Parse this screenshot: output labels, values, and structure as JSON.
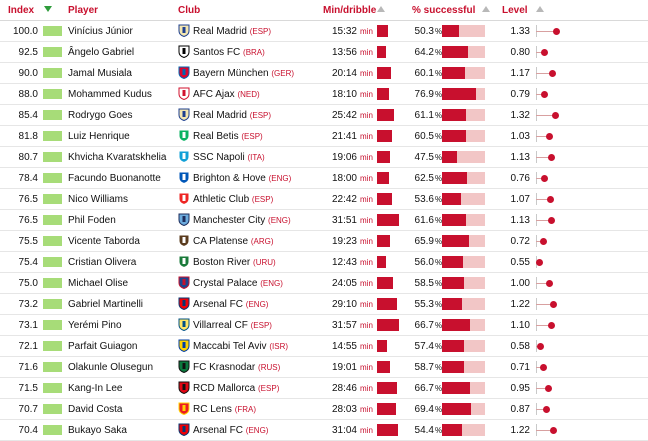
{
  "header": {
    "index": "Index",
    "player": "Player",
    "club": "Club",
    "min_dribble": "Min/dribble",
    "pct_successful": "% successful",
    "level": "Level"
  },
  "units": {
    "min": "min",
    "pct": "%"
  },
  "colors": {
    "accent": "#c8102e",
    "index_bar": "#a7dc78",
    "pct_track": "#f2c6c6"
  },
  "rows": [
    {
      "index": "100.0",
      "player": "Vinícius Júnior",
      "club": "Real Madrid",
      "country": "(ESP)",
      "crest": "real-madrid-crest-icon",
      "min": "15:32",
      "pct": "50.3",
      "level": "1.33"
    },
    {
      "index": "92.5",
      "player": "Ângelo Gabriel",
      "club": "Santos FC",
      "country": "(BRA)",
      "crest": "santos-crest-icon",
      "min": "13:56",
      "pct": "64.2",
      "level": "0.80"
    },
    {
      "index": "90.0",
      "player": "Jamal Musiala",
      "club": "Bayern München",
      "country": "(GER)",
      "crest": "bayern-crest-icon",
      "min": "20:14",
      "pct": "60.1",
      "level": "1.17"
    },
    {
      "index": "88.0",
      "player": "Mohammed Kudus",
      "club": "AFC Ajax",
      "country": "(NED)",
      "crest": "ajax-crest-icon",
      "min": "18:10",
      "pct": "76.9",
      "level": "0.79"
    },
    {
      "index": "85.4",
      "player": "Rodrygo Goes",
      "club": "Real Madrid",
      "country": "(ESP)",
      "crest": "real-madrid-crest-icon",
      "min": "25:42",
      "pct": "61.1",
      "level": "1.32"
    },
    {
      "index": "81.8",
      "player": "Luiz Henrique",
      "club": "Real Betis",
      "country": "(ESP)",
      "crest": "real-betis-crest-icon",
      "min": "21:41",
      "pct": "60.5",
      "level": "1.03"
    },
    {
      "index": "80.7",
      "player": "Khvicha Kvaratskhelia",
      "club": "SSC Napoli",
      "country": "(ITA)",
      "crest": "napoli-crest-icon",
      "min": "19:06",
      "pct": "47.5",
      "level": "1.13"
    },
    {
      "index": "78.4",
      "player": "Facundo Buonanotte",
      "club": "Brighton & Hove",
      "country": "(ENG)",
      "crest": "brighton-crest-icon",
      "min": "18:00",
      "pct": "62.5",
      "level": "0.76"
    },
    {
      "index": "76.5",
      "player": "Nico Williams",
      "club": "Athletic Club",
      "country": "(ESP)",
      "crest": "athletic-club-crest-icon",
      "min": "22:42",
      "pct": "53.6",
      "level": "1.07"
    },
    {
      "index": "76.5",
      "player": "Phil Foden",
      "club": "Manchester City",
      "country": "(ENG)",
      "crest": "man-city-crest-icon",
      "min": "31:51",
      "pct": "61.6",
      "level": "1.13"
    },
    {
      "index": "75.5",
      "player": "Vicente Taborda",
      "club": "CA Platense",
      "country": "(ARG)",
      "crest": "platense-crest-icon",
      "min": "19:23",
      "pct": "65.9",
      "level": "0.72"
    },
    {
      "index": "75.4",
      "player": "Cristian Olivera",
      "club": "Boston River",
      "country": "(URU)",
      "crest": "boston-river-crest-icon",
      "min": "12:43",
      "pct": "56.0",
      "level": "0.55"
    },
    {
      "index": "75.0",
      "player": "Michael Olise",
      "club": "Crystal Palace",
      "country": "(ENG)",
      "crest": "crystal-palace-crest-icon",
      "min": "24:05",
      "pct": "58.5",
      "level": "1.00"
    },
    {
      "index": "73.2",
      "player": "Gabriel Martinelli",
      "club": "Arsenal FC",
      "country": "(ENG)",
      "crest": "arsenal-crest-icon",
      "min": "29:10",
      "pct": "55.3",
      "level": "1.22"
    },
    {
      "index": "73.1",
      "player": "Yerémi Pino",
      "club": "Villarreal CF",
      "country": "(ESP)",
      "crest": "villarreal-crest-icon",
      "min": "31:57",
      "pct": "66.7",
      "level": "1.10"
    },
    {
      "index": "72.1",
      "player": "Parfait Guiagon",
      "club": "Maccabi Tel Aviv",
      "country": "(ISR)",
      "crest": "maccabi-crest-icon",
      "min": "14:55",
      "pct": "57.4",
      "level": "0.58"
    },
    {
      "index": "71.6",
      "player": "Olakunle Olusegun",
      "club": "FC Krasnodar",
      "country": "(RUS)",
      "crest": "krasnodar-crest-icon",
      "min": "19:01",
      "pct": "58.7",
      "level": "0.71"
    },
    {
      "index": "71.5",
      "player": "Kang-In Lee",
      "club": "RCD Mallorca",
      "country": "(ESP)",
      "crest": "mallorca-crest-icon",
      "min": "28:46",
      "pct": "66.7",
      "level": "0.95"
    },
    {
      "index": "70.7",
      "player": "David Costa",
      "club": "RC Lens",
      "country": "(FRA)",
      "crest": "lens-crest-icon",
      "min": "28:03",
      "pct": "69.4",
      "level": "0.87"
    },
    {
      "index": "70.4",
      "player": "Bukayo Saka",
      "club": "Arsenal FC",
      "country": "(ENG)",
      "crest": "arsenal-crest-icon",
      "min": "31:04",
      "pct": "54.4",
      "level": "1.22"
    }
  ]
}
